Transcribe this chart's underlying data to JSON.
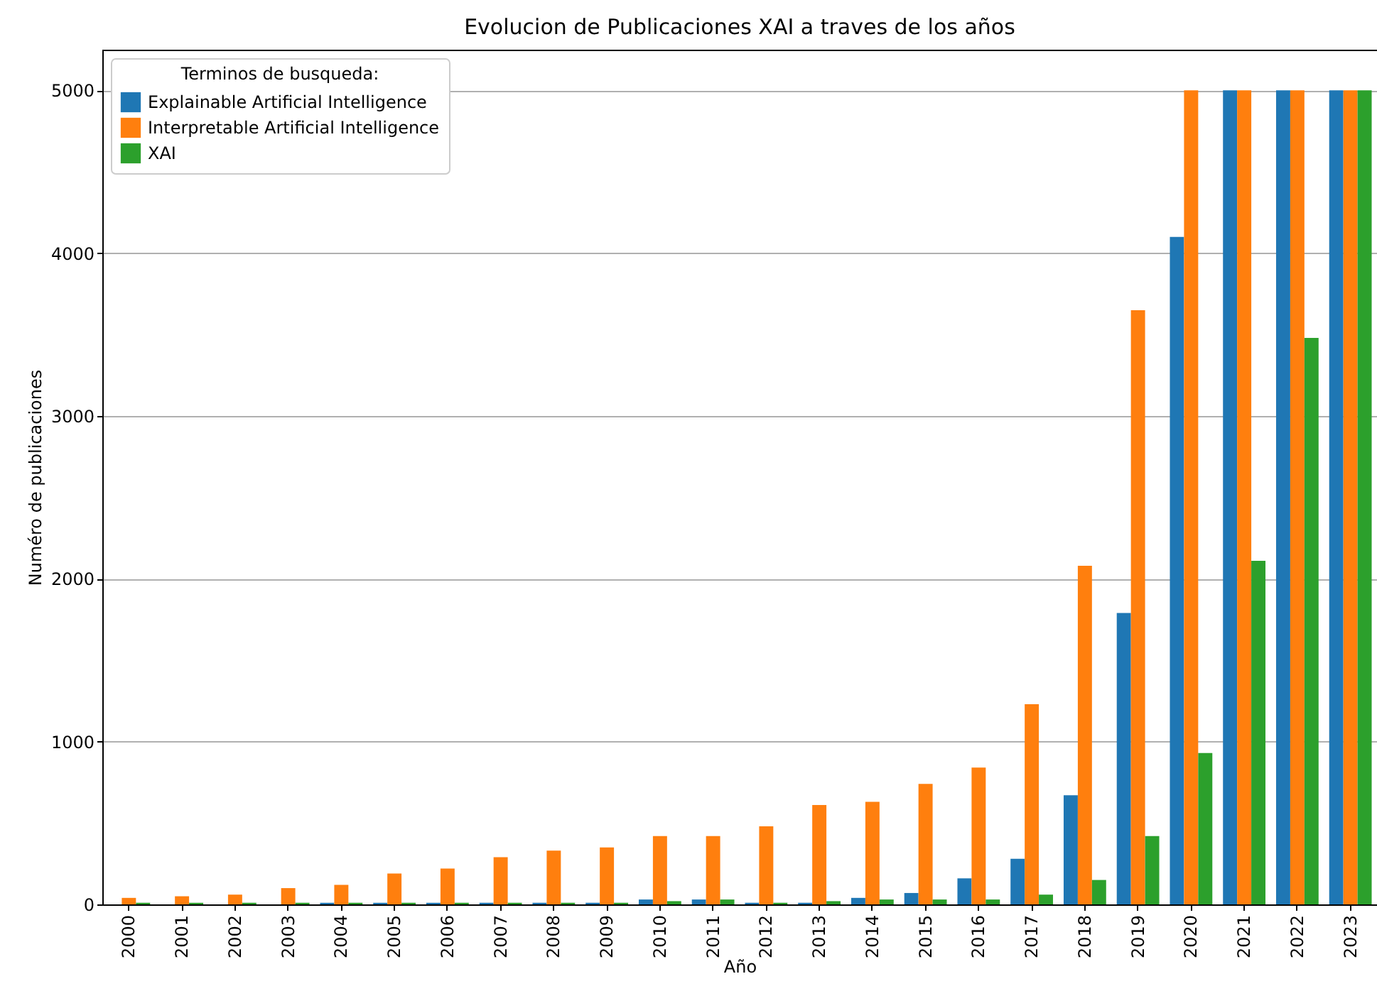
{
  "chart_data": {
    "type": "bar",
    "title": "Evolucion de Publicaciones XAI a traves de los años",
    "xlabel": "Año",
    "ylabel": "Numéro de publicaciones",
    "legend_title": "Terminos de busqueda:",
    "categories": [
      "2000",
      "2001",
      "2002",
      "2003",
      "2004",
      "2005",
      "2006",
      "2007",
      "2008",
      "2009",
      "2010",
      "2011",
      "2012",
      "2013",
      "2014",
      "2015",
      "2016",
      "2017",
      "2018",
      "2019",
      "2020",
      "2021",
      "2022",
      "2023"
    ],
    "series": [
      {
        "name": "Explainable Artificial Intelligence",
        "color": "#1f77b4",
        "values": [
          0,
          0,
          0,
          0,
          10,
          10,
          10,
          10,
          10,
          10,
          30,
          30,
          10,
          10,
          40,
          70,
          160,
          280,
          670,
          1790,
          4100,
          5000,
          5000,
          5000
        ]
      },
      {
        "name": "Interpretable Artificial Intelligence",
        "color": "#ff7f0e",
        "values": [
          40,
          50,
          60,
          100,
          120,
          190,
          220,
          290,
          330,
          350,
          420,
          420,
          480,
          610,
          630,
          740,
          840,
          1230,
          2080,
          3650,
          5000,
          5000,
          5000,
          5000
        ]
      },
      {
        "name": "XAI",
        "color": "#2ca02c",
        "values": [
          10,
          10,
          10,
          10,
          10,
          10,
          10,
          10,
          10,
          10,
          20,
          30,
          10,
          20,
          30,
          30,
          30,
          60,
          150,
          420,
          930,
          2110,
          3480,
          5000
        ]
      }
    ],
    "ylim": [
      0,
      5250
    ],
    "yticks": [
      0,
      1000,
      2000,
      3000,
      4000,
      5000
    ],
    "grid": "y",
    "legend": "top left"
  }
}
